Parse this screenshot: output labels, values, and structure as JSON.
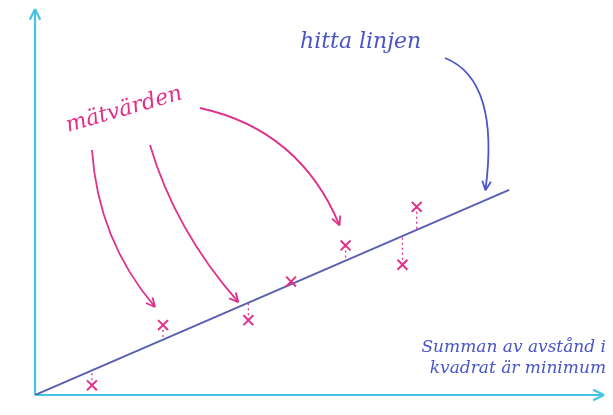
{
  "chart_data": {
    "type": "scatter",
    "xlim": [
      0,
      12
    ],
    "ylim": [
      0,
      8
    ],
    "tick_labels": false,
    "grid": false,
    "series": [
      {
        "type": "scatter",
        "marker": "cross",
        "color": "#e0308a",
        "x": [
          1.2,
          2.7,
          4.5,
          5.4,
          6.55,
          7.75,
          8.05
        ],
        "values": [
          0.2,
          1.45,
          1.55,
          2.35,
          3.1,
          2.7,
          3.9
        ]
      },
      {
        "type": "line",
        "line_style": "solid",
        "color": "#5b5fb0",
        "x": [
          0,
          10
        ],
        "values": [
          0,
          4.25
        ]
      }
    ],
    "annotations": [
      {
        "text": "mätvärden",
        "color": "#e0308a"
      },
      {
        "text": "hitta linjen",
        "color": "#4a56c8"
      },
      {
        "text": "Summan av avstånd i kvadrat är minimum",
        "color": "#4a56c8"
      }
    ]
  }
}
